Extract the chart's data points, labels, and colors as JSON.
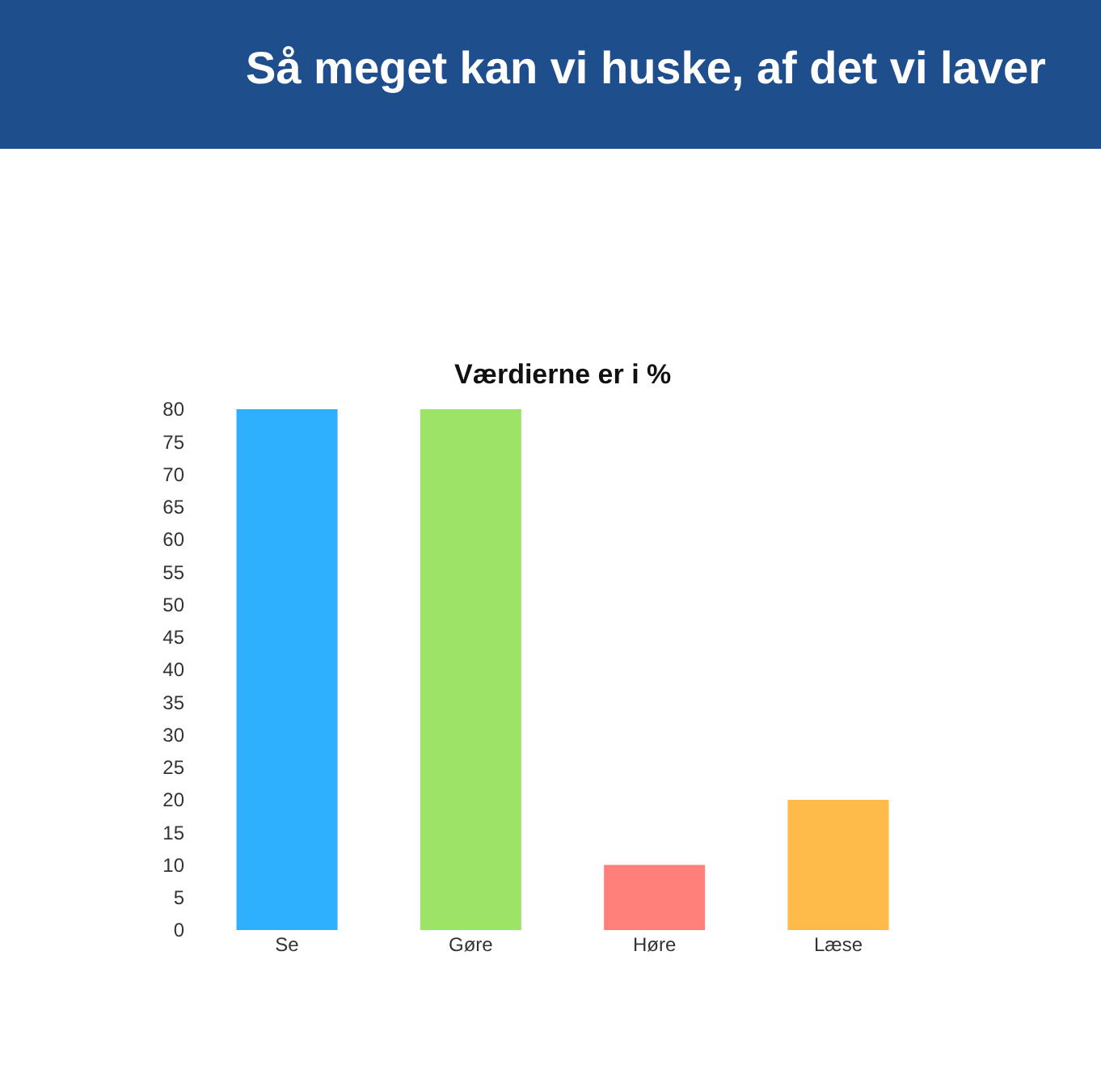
{
  "chart_data": {
    "type": "bar",
    "title": "Så meget kan vi huske, af det vi laver",
    "subtitle": "Værdierne er i %",
    "categories": [
      "Se",
      "Gøre",
      "Høre",
      "Læse"
    ],
    "values": [
      80,
      80,
      10,
      20
    ],
    "colors": [
      "#2eb0ff",
      "#9de368",
      "#ff7f7a",
      "#ffbb4a"
    ],
    "ylim": [
      0,
      80
    ],
    "yticks": [
      0,
      5,
      10,
      15,
      20,
      25,
      30,
      35,
      40,
      45,
      50,
      55,
      60,
      65,
      70,
      75,
      80
    ]
  }
}
